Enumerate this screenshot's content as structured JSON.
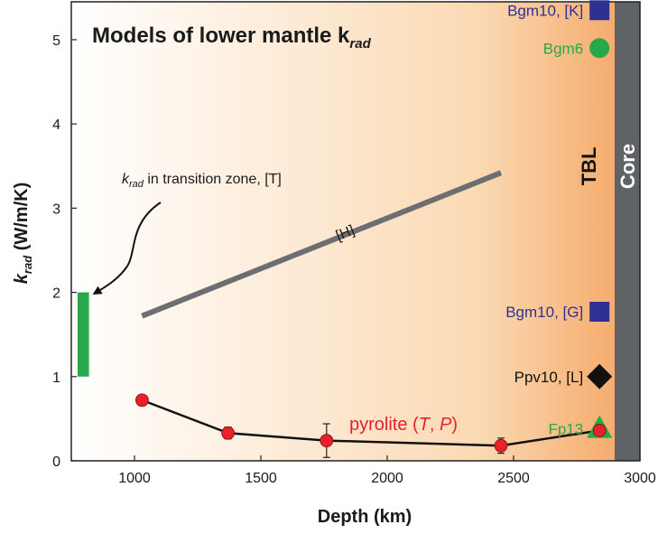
{
  "chart_data": {
    "type": "scatter",
    "title": "Models of lower mantle k",
    "title_sub": "rad",
    "xlabel": "Depth (km)",
    "ylabel_main": "k",
    "ylabel_sub": "rad",
    "ylabel_unit": " (W/m/K)",
    "xlim": [
      750,
      3000
    ],
    "ylim": [
      0,
      5.45
    ],
    "xticks": [
      {
        "v": 1000,
        "label": "1000"
      },
      {
        "v": 1500,
        "label": "1500"
      },
      {
        "v": 2000,
        "label": "2000"
      },
      {
        "v": 2500,
        "label": "2500"
      },
      {
        "v": 3000,
        "label": "3000"
      }
    ],
    "yticks": [
      {
        "v": 0,
        "label": "0"
      },
      {
        "v": 1,
        "label": "1"
      },
      {
        "v": 2,
        "label": "2"
      },
      {
        "v": 3,
        "label": "3"
      },
      {
        "v": 4,
        "label": "4"
      },
      {
        "v": 5,
        "label": "5"
      }
    ],
    "regions": {
      "tbl_label": "TBL",
      "core_label": "Core",
      "core_start": 2900,
      "tbl_center": 2840
    },
    "colors": {
      "gradient_start": "#ffffff",
      "gradient_end": "#f4a460",
      "core": "#5f6368",
      "pyrolite": "#e8202a",
      "blue": "#2e3192",
      "green": "#27a84a",
      "black": "#111111",
      "gray_line": "#6d6e71"
    },
    "transition_zone": {
      "label_k": "k",
      "label_sub": "rad",
      "label_rest": " in transition zone, [T]",
      "x_start": 775,
      "x_end": 820,
      "ymin": 1.0,
      "ymax": 2.0
    },
    "H_line": {
      "label": "[H]",
      "points": [
        [
          1030,
          1.72
        ],
        [
          2450,
          3.42
        ]
      ]
    },
    "pyrolite": {
      "label_prefix": "pyrolite (",
      "label_T": "T",
      "label_sep": ", ",
      "label_P": "P",
      "label_suffix": ")",
      "points": [
        {
          "x": 1030,
          "y": 0.72,
          "err": 0.05
        },
        {
          "x": 1370,
          "y": 0.33,
          "err": 0.07
        },
        {
          "x": 1760,
          "y": 0.24,
          "err": 0.2
        },
        {
          "x": 2450,
          "y": 0.18,
          "err": 0.09
        },
        {
          "x": 2840,
          "y": 0.36,
          "err": 0.07
        }
      ]
    },
    "markers": [
      {
        "name": "Bgm10, [K]",
        "x": 2840,
        "y": 5.35,
        "shape": "square",
        "color": "#2e3192"
      },
      {
        "name": "Bgm6",
        "x": 2840,
        "y": 4.9,
        "shape": "circle",
        "color": "#27a84a"
      },
      {
        "name": "Bgm10, [G]",
        "x": 2840,
        "y": 1.77,
        "shape": "square",
        "color": "#2e3192"
      },
      {
        "name": "Ppv10, [L]",
        "x": 2840,
        "y": 1.0,
        "shape": "diamond",
        "color": "#111111"
      },
      {
        "name": "Fp13",
        "x": 2840,
        "y": 0.38,
        "shape": "triangle",
        "color": "#27a84a"
      }
    ]
  }
}
